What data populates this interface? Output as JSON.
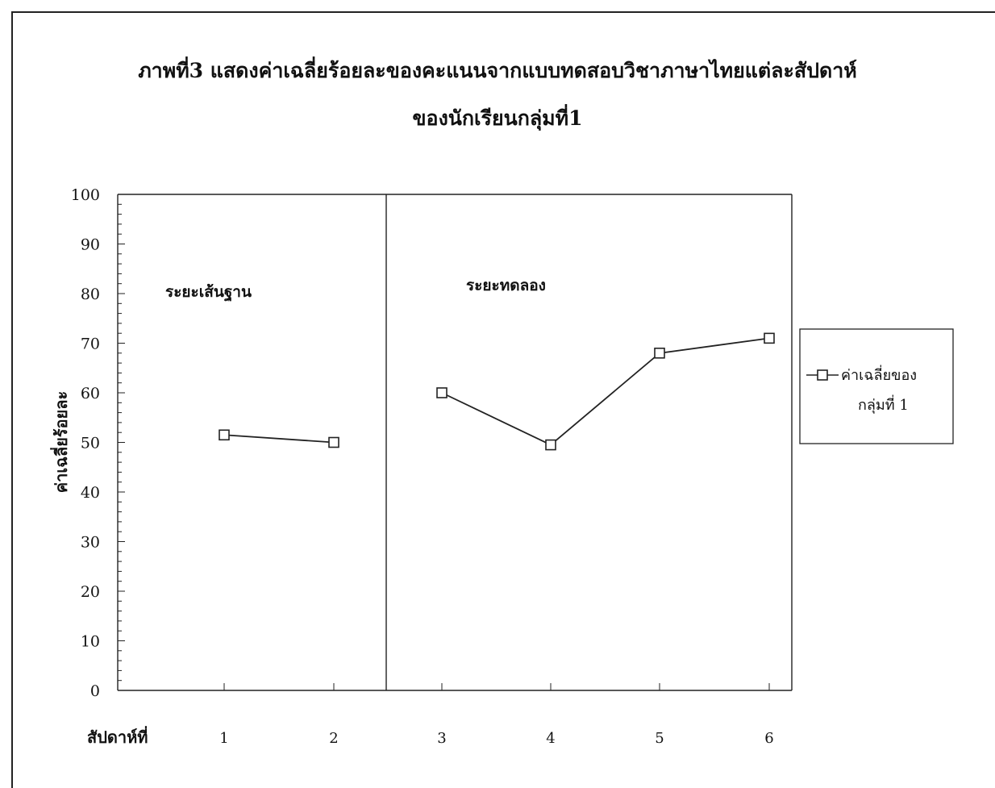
{
  "chart_data": {
    "type": "line",
    "title": "ภาพที่3  แสดงค่าเฉลี่ยร้อยละของคะแนนจากแบบทดสอบวิชาภาษาไทยแต่ละสัปดาห์",
    "subtitle": "ของนักเรียนกลุ่มที่1",
    "xlabel": "สัปดาห์ที่",
    "ylabel": "ค่าเฉลี่ยร้อยละ",
    "ylim": [
      0,
      100
    ],
    "yticks": [
      0,
      10,
      20,
      30,
      40,
      50,
      60,
      70,
      80,
      90,
      100
    ],
    "x": [
      1,
      2,
      3,
      4,
      5,
      6
    ],
    "phases": [
      {
        "label": "ระยะเส้นฐาน",
        "weeks": [
          1,
          2
        ]
      },
      {
        "label": "ระยะทดลอง",
        "weeks": [
          3,
          4,
          5,
          6
        ]
      }
    ],
    "series": [
      {
        "name": "ค่าเฉลี่ยของกลุ่มที่ 1",
        "legend_lines": [
          "ค่าเฉลี่ยของ",
          "กลุ่มที่ 1"
        ],
        "values": [
          51.5,
          50,
          60,
          49.5,
          68,
          71
        ],
        "marker": "square",
        "color": "#222222"
      }
    ],
    "legend_position": "right",
    "grid": false
  }
}
